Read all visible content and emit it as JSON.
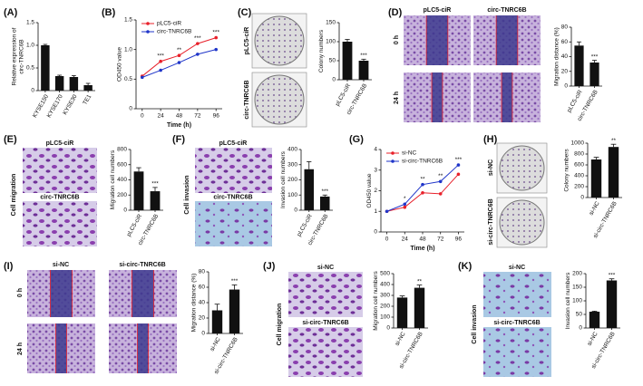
{
  "panels": [
    {
      "letter": "(A)"
    },
    {
      "letter": "(B)"
    },
    {
      "letter": "(C)",
      "labels": [
        "pLC5-ciR",
        "circ-TNRC6B"
      ]
    },
    {
      "letter": "(D)",
      "labels": [
        "pLC5-ciR",
        "circ-TNRC6B",
        "0 h",
        "24 h"
      ]
    },
    {
      "letter": "(E)",
      "labels": [
        "pLC5-ciR",
        "circ-TNRC6B",
        "Cell migration"
      ]
    },
    {
      "letter": "(F)",
      "labels": [
        "pLC5-ciR",
        "circ-TNRC6B",
        "Cell invasion"
      ]
    },
    {
      "letter": "(G)"
    },
    {
      "letter": "(H)",
      "labels": [
        "si-NC",
        "si-circ-TNRC6B"
      ]
    },
    {
      "letter": "(I)",
      "labels": [
        "si-NC",
        "si-circ-TNRC6B",
        "0 h",
        "24 h"
      ]
    },
    {
      "letter": "(J)",
      "labels": [
        "si-NC",
        "si-circ-TNRC6B",
        "Cell migration"
      ]
    },
    {
      "letter": "(K)",
      "labels": [
        "si-NC",
        "si-circ-TNRC6B",
        "Cell invasion"
      ]
    }
  ],
  "chart_data": [
    {
      "type": "bar",
      "ylabel": [
        "Relative expression of",
        "circ-TNRC6B"
      ],
      "categories": [
        "KYSE150",
        "KYSE170",
        "KYSE30",
        "TE1"
      ],
      "values": [
        1.0,
        0.32,
        0.3,
        0.12
      ],
      "errors": [
        0.02,
        0.02,
        0.03,
        0.04
      ],
      "color": "#111111",
      "ylim": [
        0,
        1.5
      ],
      "yticks": [
        0,
        0.5,
        {
          "value": 1,
          "label": "1.0"
        },
        1.5
      ]
    },
    {
      "type": "line",
      "ylabel": [
        "OD450 value"
      ],
      "xlabel": "Time (h)",
      "x": [
        0,
        24,
        48,
        72,
        96
      ],
      "xlim": [
        -8,
        104
      ],
      "xticks": [
        0,
        24,
        48,
        72,
        96
      ],
      "series": [
        {
          "name": "pLC5-ciR",
          "color": "#e8202a",
          "values": [
            0.55,
            0.8,
            0.9,
            1.1,
            1.2
          ]
        },
        {
          "name": "circ-TNRC6B",
          "color": "#1f35c9",
          "values": [
            0.53,
            0.65,
            0.78,
            0.92,
            1.0
          ]
        }
      ],
      "annotations": [
        null,
        "***",
        "**",
        "***",
        "***"
      ],
      "ylim": [
        0,
        1.5
      ],
      "yticks": [
        0,
        0.5,
        {
          "value": 1,
          "label": "1.0"
        },
        1.5
      ]
    },
    {
      "type": "bar",
      "ylabel": [
        "Colony numbers"
      ],
      "categories": [
        "pLC5-ciR",
        "circ-TNRC6B"
      ],
      "values": [
        100,
        50
      ],
      "errors": [
        6,
        4
      ],
      "annotations": [
        null,
        "***"
      ],
      "color": "#111111",
      "ylim": [
        0,
        150
      ],
      "yticks": [
        0,
        50,
        100,
        150
      ]
    },
    {
      "type": "bar",
      "ylabel": [
        "Migration distance (%)"
      ],
      "categories": [
        "pLC5-ciR",
        "circ-TNRC6B"
      ],
      "values": [
        55,
        32
      ],
      "errors": [
        5,
        3
      ],
      "annotations": [
        null,
        "***"
      ],
      "color": "#111111",
      "ylim": [
        0,
        80
      ],
      "yticks": [
        0,
        20,
        40,
        60,
        80
      ]
    },
    {
      "type": "bar",
      "ylabel": [
        "Migration cell numbers"
      ],
      "categories": [
        "pLC5-ciR",
        "circ-TNRC6B"
      ],
      "values": [
        510,
        250
      ],
      "errors": [
        50,
        50
      ],
      "annotations": [
        null,
        "***"
      ],
      "color": "#111111",
      "ylim": [
        0,
        800
      ],
      "yticks": [
        0,
        200,
        400,
        600,
        800
      ]
    },
    {
      "type": "bar",
      "ylabel": [
        "Invasion cell numbers"
      ],
      "categories": [
        "pLC5-ciR",
        "circ-TNRC6B"
      ],
      "values": [
        270,
        90
      ],
      "errors": [
        50,
        10
      ],
      "annotations": [
        null,
        "***"
      ],
      "color": "#111111",
      "ylim": [
        0,
        400
      ],
      "yticks": [
        0,
        100,
        200,
        300,
        400
      ]
    },
    {
      "type": "line",
      "ylabel": [
        "OD450 value"
      ],
      "xlabel": "Time (h)",
      "x": [
        0,
        24,
        48,
        72,
        96
      ],
      "xlim": [
        -8,
        104
      ],
      "xticks": [
        0,
        24,
        48,
        72,
        96
      ],
      "series": [
        {
          "name": "si-NC",
          "color": "#e8202a",
          "values": [
            1.0,
            1.2,
            1.9,
            1.85,
            2.8
          ]
        },
        {
          "name": "si-circ-TNRC6B",
          "color": "#1f35c9",
          "values": [
            1.0,
            1.35,
            2.3,
            2.45,
            3.25
          ]
        }
      ],
      "annotations": [
        null,
        "*",
        "**",
        "**",
        "***"
      ],
      "ylim": [
        0,
        4
      ],
      "yticks": [
        0,
        1,
        2,
        3,
        4
      ]
    },
    {
      "type": "bar",
      "ylabel": [
        "Colony numbers"
      ],
      "categories": [
        "si-NC",
        "si-circ-TNRC6B"
      ],
      "values": [
        700,
        930
      ],
      "errors": [
        40,
        50
      ],
      "annotations": [
        null,
        "**"
      ],
      "color": "#111111",
      "ylim": [
        0,
        1000
      ],
      "yticks": [
        0,
        200,
        400,
        600,
        800,
        1000
      ]
    },
    {
      "type": "bar",
      "ylabel": [
        "Migration distance (%)"
      ],
      "categories": [
        "si-NC",
        "si-circ-TNRC6B"
      ],
      "values": [
        30,
        57
      ],
      "errors": [
        8,
        6
      ],
      "annotations": [
        null,
        "***"
      ],
      "color": "#111111",
      "ylim": [
        0,
        80
      ],
      "yticks": [
        0,
        20,
        40,
        60,
        80
      ]
    },
    {
      "type": "bar",
      "ylabel": [
        "Migration cell numbers"
      ],
      "categories": [
        "si-NC",
        "si-circ-TNRC6B"
      ],
      "values": [
        280,
        370
      ],
      "errors": [
        15,
        25
      ],
      "annotations": [
        null,
        "**"
      ],
      "color": "#111111",
      "ylim": [
        0,
        500
      ],
      "yticks": [
        0,
        100,
        200,
        300,
        400,
        500
      ]
    },
    {
      "type": "bar",
      "ylabel": [
        "Invasion cell numbers"
      ],
      "categories": [
        "si-NC",
        "si-circ-TNRC6B"
      ],
      "values": [
        60,
        175
      ],
      "errors": [
        2,
        6
      ],
      "annotations": [
        null,
        "***"
      ],
      "color": "#111111",
      "ylim": [
        0,
        200
      ],
      "yticks": [
        0,
        50,
        100,
        150,
        200
      ]
    }
  ]
}
